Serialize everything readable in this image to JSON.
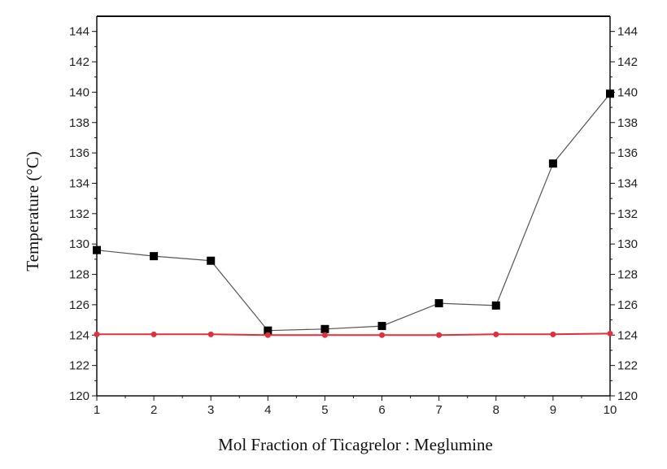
{
  "chart_data": {
    "type": "line",
    "title": "",
    "xlabel": "Mol Fraction of Ticagrelor : Meglumine",
    "ylabel": "Temperature (°C)",
    "xlim": [
      1,
      10
    ],
    "ylim": [
      120,
      145
    ],
    "x_ticks": [
      1,
      2,
      3,
      4,
      5,
      6,
      7,
      8,
      9,
      10
    ],
    "y_ticks": [
      120,
      122,
      124,
      126,
      128,
      130,
      132,
      134,
      136,
      138,
      140,
      142,
      144
    ],
    "right_axis_mirrors_left": true,
    "grid": false,
    "legend": "none",
    "x": [
      1,
      2,
      3,
      4,
      5,
      6,
      7,
      8,
      9,
      10
    ],
    "series": [
      {
        "marker": "square",
        "color": "#000000",
        "line_color": "#555555",
        "values": [
          129.6,
          129.2,
          128.9,
          124.3,
          124.4,
          124.6,
          126.1,
          125.95,
          135.3,
          139.9
        ]
      },
      {
        "marker": "circle",
        "color": "#e0303e",
        "line_color": "#e0303e",
        "values": [
          124.05,
          124.05,
          124.05,
          124.0,
          124.0,
          124.0,
          124.0,
          124.05,
          124.05,
          124.1
        ]
      }
    ]
  }
}
